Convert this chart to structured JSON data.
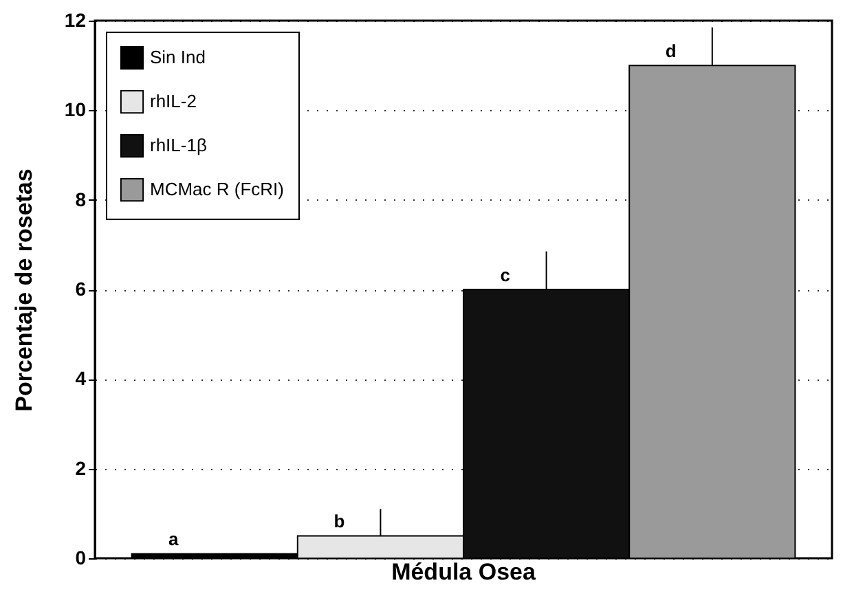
{
  "chart_data": {
    "type": "bar",
    "ylabel": "Porcentaje de rosetas",
    "categories": [
      "Médula Osea"
    ],
    "series": [
      {
        "name": "Sin Ind",
        "color": "#000000",
        "values": [
          0.1
        ]
      },
      {
        "name": "rhIL-2",
        "color": "#e6e6e6",
        "values": [
          0.5
        ],
        "errors": [
          [
            0.5,
            1.1
          ]
        ]
      },
      {
        "name": "rhIL-1β",
        "color": "#111111",
        "values": [
          6.0
        ],
        "errors": [
          [
            6.0,
            6.85
          ]
        ]
      },
      {
        "name": "MCMac R (FcRI)",
        "color": "#9a9a9a",
        "values": [
          11.0
        ],
        "errors": [
          [
            11.0,
            11.85
          ]
        ]
      }
    ],
    "annotations": [
      "a",
      "b",
      "c",
      "d"
    ],
    "ylim": [
      0,
      12
    ],
    "yticks": [
      0,
      2,
      4,
      6,
      8,
      10,
      12
    ],
    "grid": "y",
    "legend": "top left"
  }
}
